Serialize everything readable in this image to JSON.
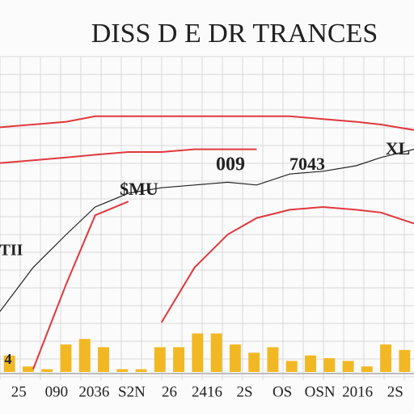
{
  "chart_data": [
    {
      "type": "line",
      "title": "DISS D E DR TRANCES",
      "x": [
        0,
        8,
        16,
        23,
        31,
        39,
        47,
        55,
        62,
        70,
        78,
        86,
        92,
        100
      ],
      "xlim": [
        0,
        100
      ],
      "ylim": [
        0,
        100
      ],
      "grid": true,
      "annotations": [
        "$MU",
        "009",
        "7043",
        "XL",
        "TII",
        "4"
      ],
      "series": [
        {
          "color": "#222222",
          "values": [
            22,
            38,
            50,
            60,
            65,
            67,
            68,
            69,
            68,
            72,
            73,
            75,
            78,
            81
          ]
        },
        {
          "color": "#e0383e",
          "values": [
            89,
            90,
            91,
            93,
            93,
            93,
            93,
            93,
            93,
            93,
            92,
            91,
            90,
            88
          ]
        },
        {
          "color": "#e0383e",
          "values": [
            76,
            77,
            78,
            79,
            80,
            80,
            81,
            81,
            81,
            null,
            null,
            null,
            null,
            null
          ]
        },
        {
          "color": "#e0383e",
          "values": [
            null,
            1,
            32,
            57,
            62,
            null,
            null,
            null,
            null,
            null,
            null,
            null,
            null,
            null
          ]
        },
        {
          "color": "#e0383e",
          "values": [
            null,
            null,
            null,
            null,
            null,
            18,
            38,
            50,
            56,
            59,
            60,
            59,
            58,
            54
          ]
        }
      ]
    },
    {
      "type": "bar",
      "color": "#f2b824",
      "ylim": [
        0,
        100
      ],
      "categories": [
        "25",
        null,
        "090",
        null,
        "2036",
        null,
        "S2N",
        null,
        "26",
        null,
        "2416",
        null,
        "2S",
        null,
        "OS",
        null,
        "OSN",
        null,
        "2016",
        null,
        "2S",
        null
      ],
      "values": [
        6,
        2,
        1,
        10,
        12,
        9,
        1,
        1,
        9,
        9,
        14,
        14,
        10,
        7,
        9,
        4,
        6,
        5,
        4,
        2,
        10,
        8
      ]
    }
  ]
}
